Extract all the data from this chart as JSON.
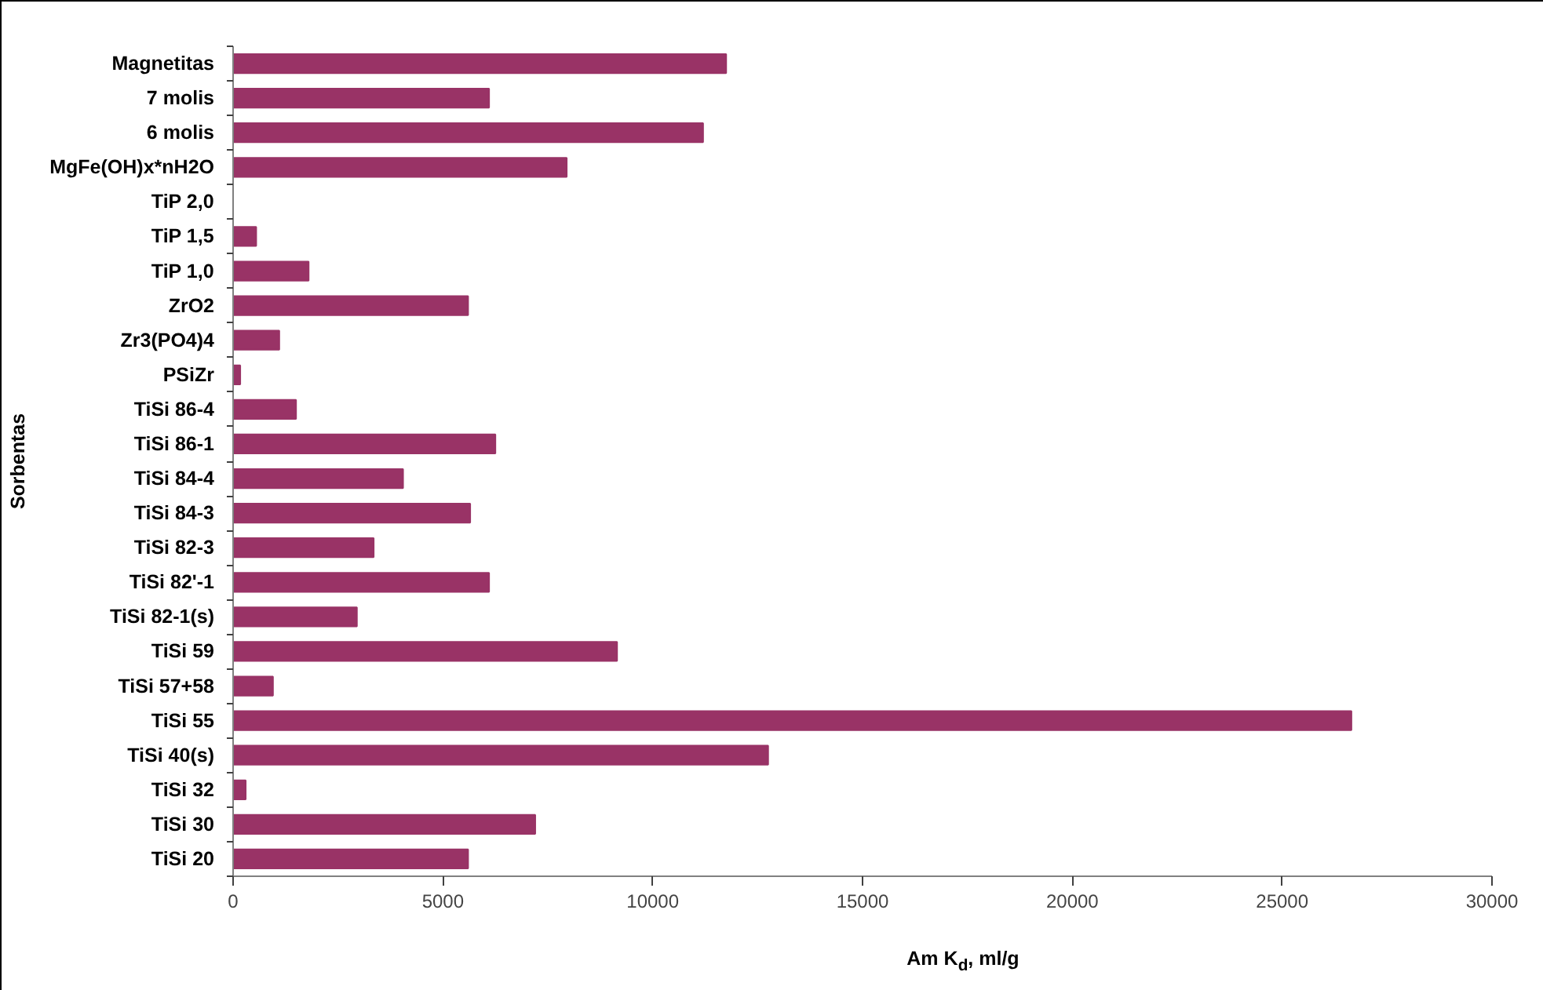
{
  "chart_data": {
    "type": "bar",
    "orientation": "horizontal",
    "xlabel": "Am K$_{d}$, ml/g",
    "ylabel": "Sorbentas",
    "categories": [
      "Magnetitas",
      "7 molis",
      "6 molis",
      "MgFe(OH)x*nH2O",
      "TiP 2,0",
      "TiP 1,5",
      "TiP 1,0",
      "ZrO2",
      "Zr3(PO4)4",
      "PSiZr",
      "TiSi 86-4",
      "TiSi 86-1",
      "TiSi 84-4",
      "TiSi 84-3",
      "TiSi 82-3",
      "TiSi 82'-1",
      "TiSi 82-1(s)",
      "TiSi 59",
      "TiSi 57+58",
      "TiSi 55",
      "TiSi 40(s)",
      "TiSi 32",
      "TiSi 30",
      "TiSi 20"
    ],
    "values": [
      11750,
      6100,
      11200,
      7950,
      0,
      550,
      1800,
      5600,
      1100,
      170,
      1500,
      6250,
      4050,
      5650,
      3350,
      6100,
      2950,
      9150,
      950,
      26650,
      12750,
      300,
      7200,
      5600
    ],
    "color": "#993366",
    "xlim": [
      0,
      30000
    ],
    "xticks": [
      0,
      5000,
      10000,
      15000,
      20000,
      25000,
      30000
    ],
    "grid": false
  }
}
